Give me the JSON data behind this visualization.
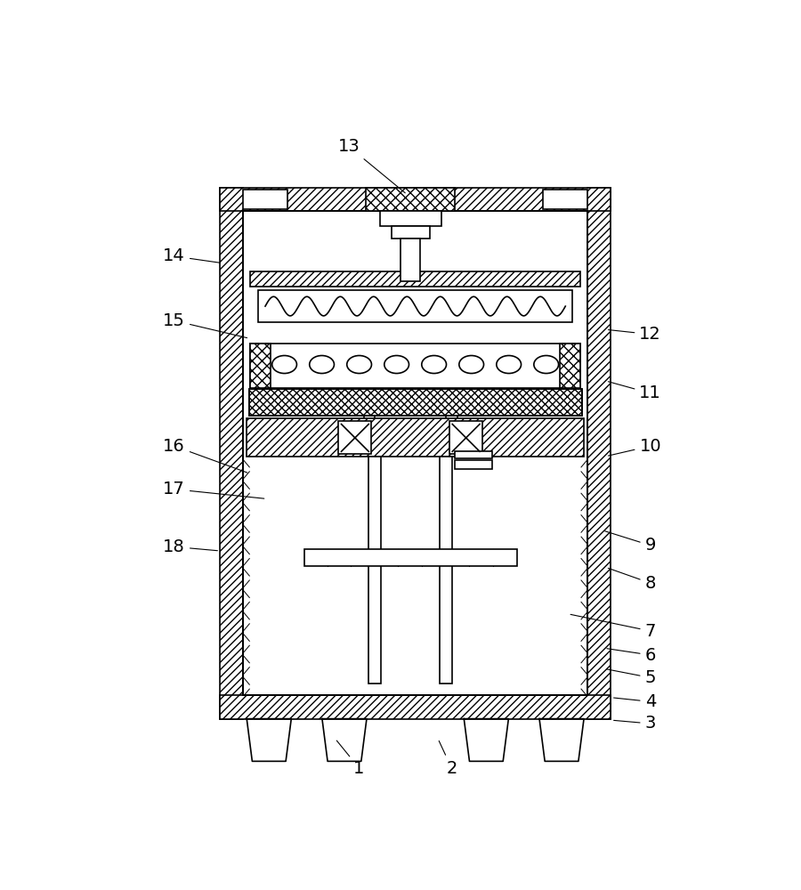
{
  "bg_color": "#ffffff",
  "lc": "#000000",
  "lw": 1.2,
  "fig_width": 9.0,
  "fig_height": 10.0,
  "ann_items": [
    [
      1,
      375,
      965,
      340,
      922
    ],
    [
      2,
      510,
      965,
      490,
      922
    ],
    [
      3,
      800,
      900,
      743,
      895
    ],
    [
      4,
      800,
      868,
      743,
      862
    ],
    [
      5,
      800,
      833,
      733,
      820
    ],
    [
      6,
      800,
      800,
      733,
      790
    ],
    [
      7,
      800,
      765,
      680,
      740
    ],
    [
      8,
      800,
      695,
      735,
      672
    ],
    [
      9,
      800,
      640,
      730,
      618
    ],
    [
      10,
      800,
      495,
      735,
      510
    ],
    [
      11,
      800,
      418,
      735,
      400
    ],
    [
      12,
      800,
      332,
      735,
      325
    ],
    [
      13,
      360,
      58,
      445,
      128
    ],
    [
      14,
      105,
      218,
      175,
      228
    ],
    [
      15,
      105,
      312,
      215,
      338
    ],
    [
      16,
      105,
      495,
      215,
      535
    ],
    [
      17,
      105,
      558,
      240,
      572
    ],
    [
      18,
      105,
      642,
      172,
      648
    ]
  ]
}
